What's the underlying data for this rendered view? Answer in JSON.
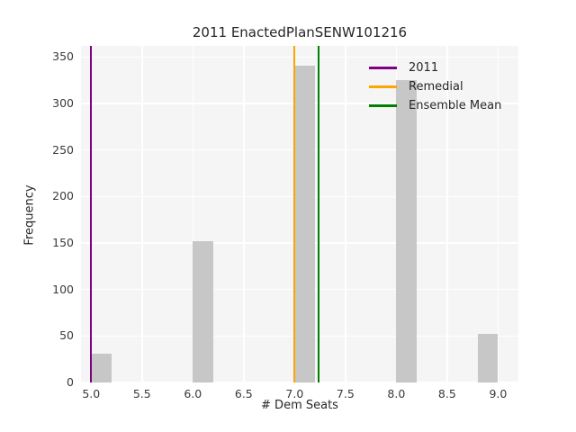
{
  "figure": {
    "background": "#ffffff"
  },
  "chart_data": {
    "type": "bar",
    "subtype": "histogram",
    "title": "2011 EnactedPlanSENW101216",
    "xlabel": "# Dem Seats",
    "ylabel": "Frequency",
    "plot_background": "#f5f5f5",
    "grid": true,
    "grid_color": "#ffffff",
    "bar_color": "#c7c7c7",
    "xlim": [
      4.9,
      9.2
    ],
    "ylim": [
      0,
      362
    ],
    "xticks": [
      5.0,
      5.5,
      6.0,
      6.5,
      7.0,
      7.5,
      8.0,
      8.5,
      9.0
    ],
    "xtick_labels": [
      "5.0",
      "5.5",
      "6.0",
      "6.5",
      "7.0",
      "7.5",
      "8.0",
      "8.5",
      "9.0"
    ],
    "yticks": [
      0,
      50,
      100,
      150,
      200,
      250,
      300,
      350
    ],
    "ytick_labels": [
      "0",
      "50",
      "100",
      "150",
      "200",
      "250",
      "300",
      "350"
    ],
    "bars": [
      {
        "bin_start": 5.0,
        "bin_end": 5.2,
        "frequency": 31
      },
      {
        "bin_start": 6.0,
        "bin_end": 6.2,
        "frequency": 152
      },
      {
        "bin_start": 7.0,
        "bin_end": 7.2,
        "frequency": 341
      },
      {
        "bin_start": 8.0,
        "bin_end": 8.2,
        "frequency": 325
      },
      {
        "bin_start": 8.8,
        "bin_end": 9.0,
        "frequency": 52
      }
    ],
    "vlines": [
      {
        "label": "2011",
        "x": 5.0,
        "color": "#800080"
      },
      {
        "label": "Remedial",
        "x": 7.0,
        "color": "#ffa500"
      },
      {
        "label": "Ensemble Mean",
        "x": 7.24,
        "color": "#008000"
      }
    ],
    "legend": {
      "position": "upper-right",
      "frame": false,
      "entries": [
        "2011",
        "Remedial",
        "Ensemble Mean"
      ]
    }
  }
}
